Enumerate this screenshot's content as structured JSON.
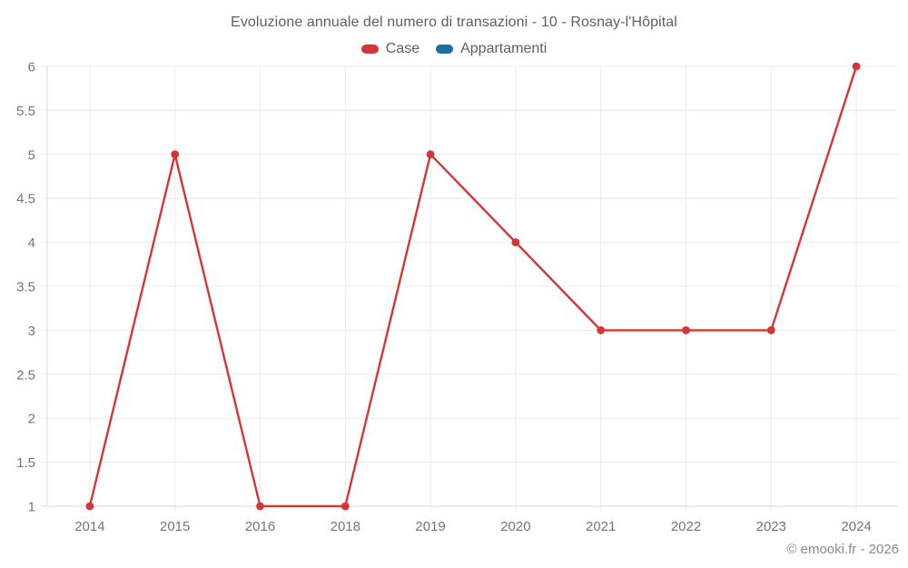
{
  "chart": {
    "title": "Evoluzione annuale del numero di transazioni - 10 - Rosnay-l'Hôpital",
    "footer": "© emooki.fr - 2026",
    "legend": [
      {
        "label": "Case",
        "color": "#d73535"
      },
      {
        "label": "Appartamenti",
        "color": "#1c6ea4"
      }
    ]
  },
  "chart_data": {
    "type": "line",
    "title": "Evoluzione annuale del numero di transazioni - 10 - Rosnay-l'Hôpital",
    "categories": [
      "2014",
      "2015",
      "2016",
      "2018",
      "2019",
      "2020",
      "2021",
      "2022",
      "2023",
      "2024"
    ],
    "series": [
      {
        "name": "Case",
        "color": "#d73535",
        "values": [
          1,
          5,
          1,
          1,
          5,
          4,
          3,
          3,
          3,
          6
        ]
      },
      {
        "name": "Appartamenti",
        "color": "#1c6ea4",
        "values": []
      }
    ],
    "xlabel": "",
    "ylabel": "",
    "ylim": [
      1,
      6
    ],
    "ytick_step": 0.5,
    "grid": true,
    "legend_position": "top",
    "gridline_color": "#ececec",
    "axis_color": "#d9d9d9"
  }
}
